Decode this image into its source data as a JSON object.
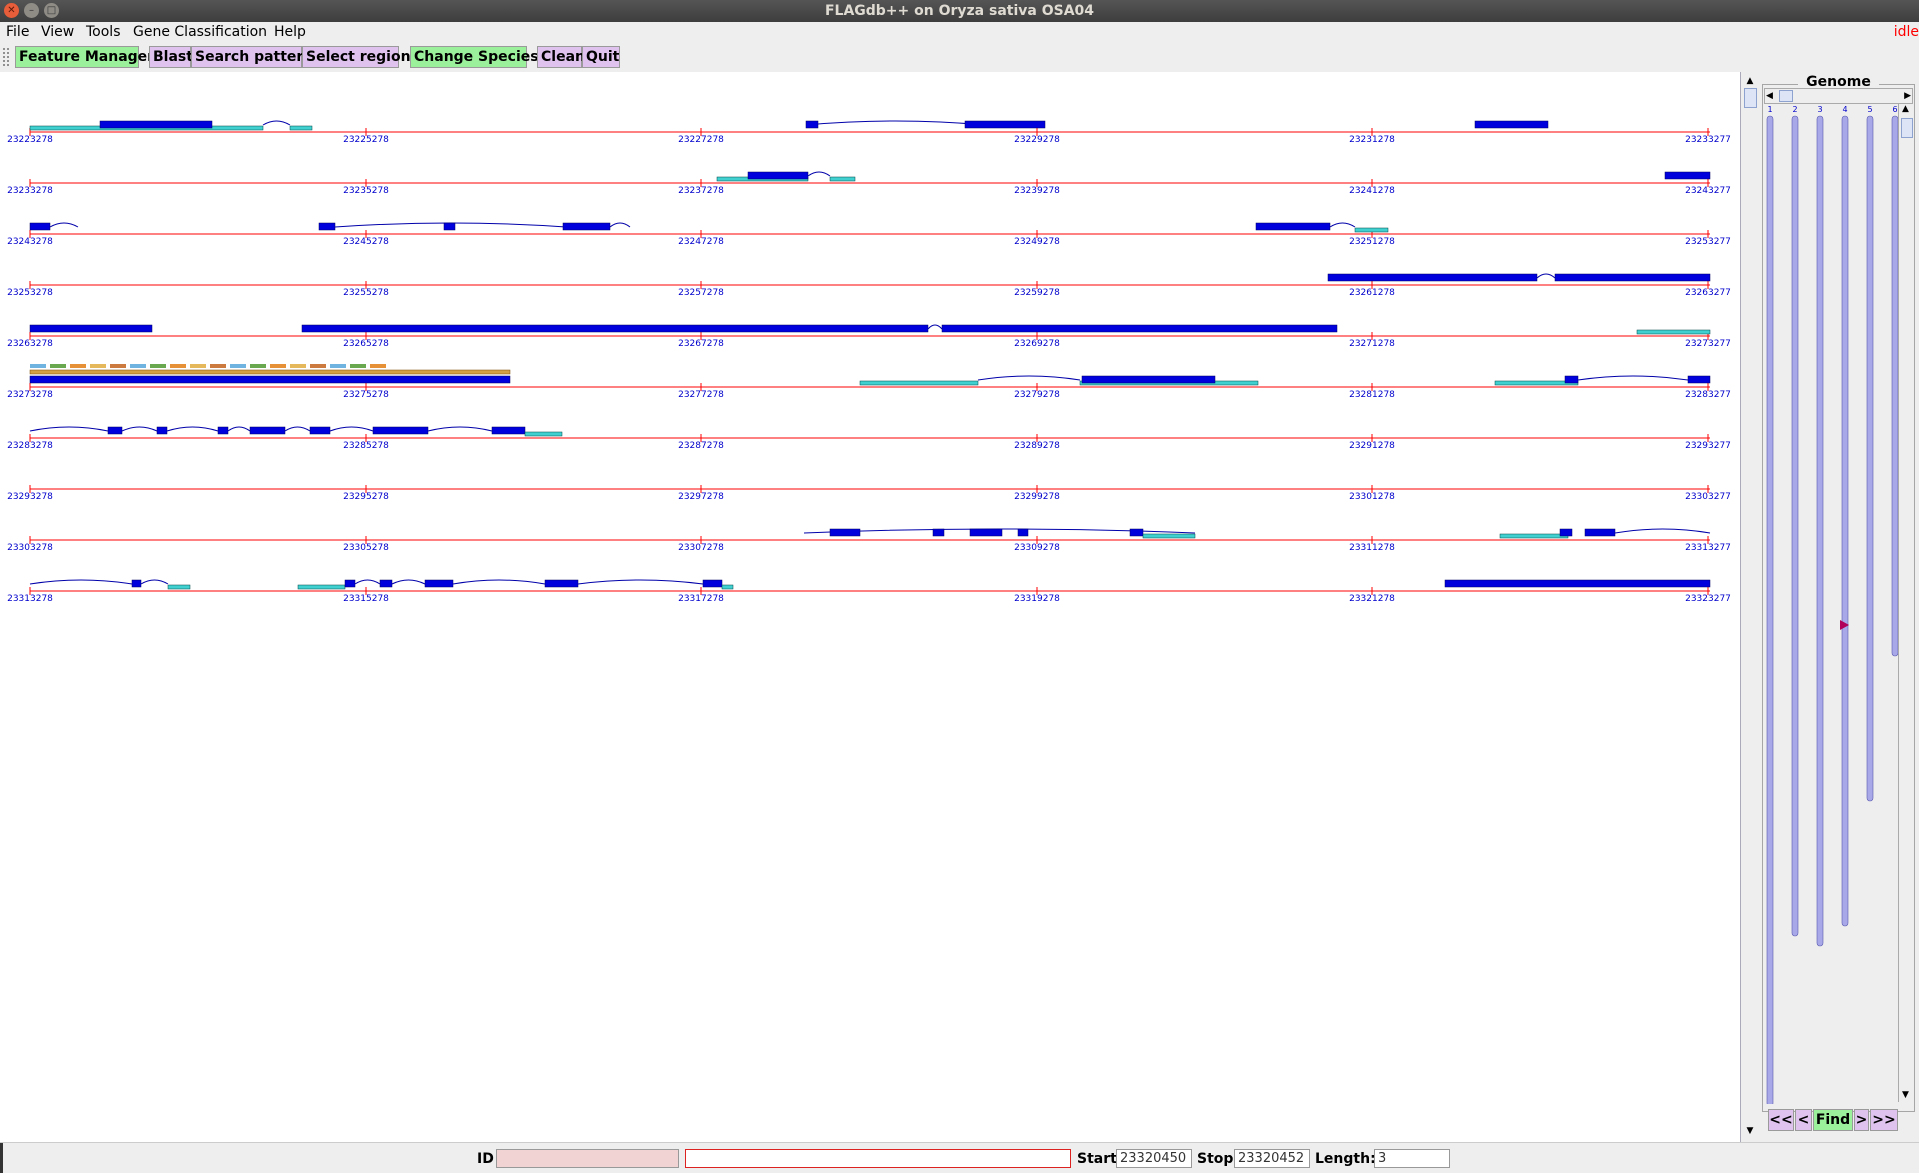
{
  "window": {
    "title": "FLAGdb++ on Oryza sativa OSA04"
  },
  "menu": {
    "items": [
      "File",
      "View",
      "Tools",
      "Gene Classification",
      "Help"
    ]
  },
  "status": {
    "text": "idle"
  },
  "toolbar": {
    "feature_manager": "Feature Manager",
    "blast": "Blast",
    "search_pattern": "Search pattern",
    "select_region": "Select region",
    "change_species": "Change Species",
    "clean": "Clean",
    "quit": "Quit"
  },
  "tracks": [
    {
      "start": "23223278",
      "mid": [
        "23225278",
        "23227278",
        "23229278",
        "23231278"
      ],
      "end": "23233277"
    },
    {
      "start": "23233278",
      "mid": [
        "23235278",
        "23237278",
        "23239278",
        "23241278"
      ],
      "end": "23243277"
    },
    {
      "start": "23243278",
      "mid": [
        "23245278",
        "23247278",
        "23249278",
        "23251278"
      ],
      "end": "23253277"
    },
    {
      "start": "23253278",
      "mid": [
        "23255278",
        "23257278",
        "23259278",
        "23261278"
      ],
      "end": "23263277"
    },
    {
      "start": "23263278",
      "mid": [
        "23265278",
        "23267278",
        "23269278",
        "23271278"
      ],
      "end": "23273277"
    },
    {
      "start": "23273278",
      "mid": [
        "23275278",
        "23277278",
        "23279278",
        "23281278"
      ],
      "end": "23283277"
    },
    {
      "start": "23283278",
      "mid": [
        "23285278",
        "23287278",
        "23289278",
        "23291278"
      ],
      "end": "23293277"
    },
    {
      "start": "23293278",
      "mid": [
        "23295278",
        "23297278",
        "23299278",
        "23301278"
      ],
      "end": "23303277"
    },
    {
      "start": "23303278",
      "mid": [
        "23305278",
        "23307278",
        "23309278",
        "23311278"
      ],
      "end": "23313277"
    },
    {
      "start": "23313278",
      "mid": [
        "23315278",
        "23317278",
        "23319278",
        "23321278"
      ],
      "end": "23323277"
    }
  ],
  "genome": {
    "title": "Genome",
    "chromosome_labels": [
      "1",
      "2",
      "3",
      "4",
      "5",
      "6"
    ],
    "nav": {
      "first": "<<",
      "prev": "<",
      "find": "Find",
      "next": ">",
      "last": ">>"
    }
  },
  "bottom": {
    "id_label": "ID",
    "id_value": "",
    "search_value": "",
    "start_label": "Start",
    "start_value": "23320450",
    "stop_label": "Stop",
    "stop_value": "23320452",
    "length_label": "Length:",
    "length_value": "3"
  },
  "colors": {
    "exon": "#0000dd",
    "utr": "#40d0d0",
    "ruler": "#ff0000",
    "tick_label": "#0000cc",
    "chromosome": "#a8a8e8",
    "button_green": "#9bf09b",
    "button_violet": "#dfc3ee"
  }
}
